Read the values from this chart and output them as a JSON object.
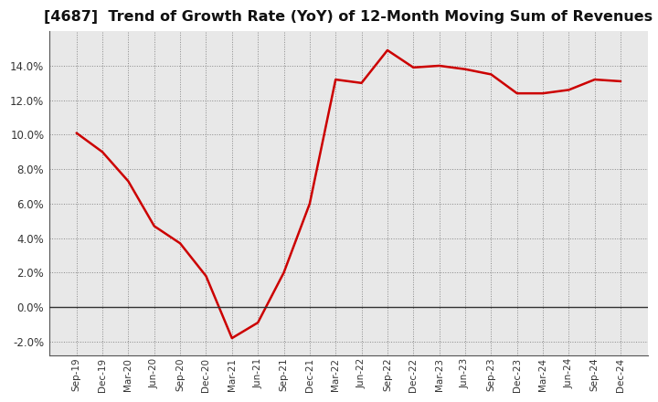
{
  "title": "[4687]  Trend of Growth Rate (YoY) of 12-Month Moving Sum of Revenues",
  "title_fontsize": 11.5,
  "line_color": "#CC0000",
  "line_width": 1.8,
  "background_color": "#FFFFFF",
  "plot_bg_color": "#E8E8E8",
  "grid_color": "#888888",
  "ylim": [
    -0.028,
    0.16
  ],
  "yticks": [
    -0.02,
    0.0,
    0.02,
    0.04,
    0.06,
    0.08,
    0.1,
    0.12,
    0.14
  ],
  "x_labels": [
    "Sep-19",
    "Dec-19",
    "Mar-20",
    "Jun-20",
    "Sep-20",
    "Dec-20",
    "Mar-21",
    "Jun-21",
    "Sep-21",
    "Dec-21",
    "Mar-22",
    "Jun-22",
    "Sep-22",
    "Dec-22",
    "Mar-23",
    "Jun-23",
    "Sep-23",
    "Dec-23",
    "Mar-24",
    "Jun-24",
    "Sep-24",
    "Dec-24"
  ],
  "values": [
    0.101,
    0.09,
    0.073,
    0.047,
    0.037,
    0.018,
    -0.018,
    -0.009,
    0.02,
    0.06,
    0.132,
    0.13,
    0.149,
    0.139,
    0.14,
    0.138,
    0.135,
    0.124,
    0.124,
    0.126,
    0.132,
    0.131
  ]
}
